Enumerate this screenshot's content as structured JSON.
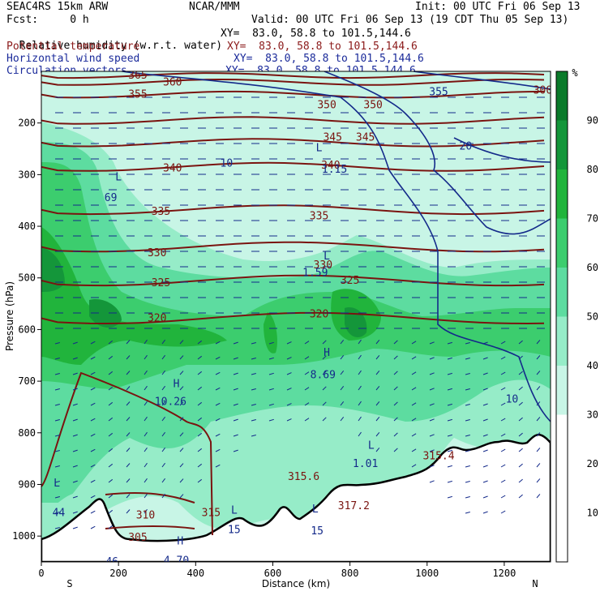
{
  "header": {
    "model": "SEAC4RS 15km ARW",
    "org": "NCAR/MMM",
    "init": "Init: 00 UTC Fri 06 Sep 13",
    "fcst": "Fcst:     0 h",
    "valid": "Valid: 00 UTC Fri 06 Sep 13 (19 CDT Thu 05 Sep 13)",
    "fields": [
      {
        "name": "Relative humidity (w.r.t. water)",
        "xy": "XY=  83.0, 58.8 to 101.5,144.6",
        "color": "#000000"
      },
      {
        "name": "Potential temperature",
        "xy": "XY=  83.0, 58.8 to 101.5,144.6",
        "color": "#8b1a1a"
      },
      {
        "name": "Horizontal wind speed",
        "xy": "XY=  83.0, 58.8 to 101.5,144.6",
        "color": "#1a2a9a"
      },
      {
        "name": "Circulation vectors",
        "xy": "XY=  83.0, 58.8 to 101.5,144.6",
        "color": "#1a2a9a"
      }
    ]
  },
  "chart_data": {
    "type": "heatmap",
    "xlabel": "Distance (km)",
    "ylabel": "Pressure (hPa)",
    "xlim": [
      0,
      1320
    ],
    "ylim": [
      1050,
      100
    ],
    "x_ticks": [
      0,
      200,
      400,
      600,
      800,
      1000,
      1200
    ],
    "y_ticks": [
      200,
      300,
      400,
      500,
      600,
      700,
      800,
      900,
      1000
    ],
    "x_end_labels": {
      "left": "S",
      "right": "N"
    },
    "colorbar": {
      "unit": "%",
      "levels": [
        10,
        20,
        30,
        40,
        50,
        60,
        70,
        80,
        90
      ],
      "colors": [
        "#ffffff",
        "#ffffff",
        "#ffffff",
        "#c8f5e6",
        "#96ecc8",
        "#5ddca0",
        "#3ccd6e",
        "#21b43c",
        "#14963a",
        "#0a7a2a"
      ]
    },
    "theta_contours": [
      {
        "level": 365,
        "p": 108
      },
      {
        "level": 360,
        "p": 121
      },
      {
        "level": 355,
        "p": 145
      },
      {
        "level": 350,
        "p": 195
      },
      {
        "level": 345,
        "p": 238
      },
      {
        "level": 340,
        "p": 285
      },
      {
        "level": 335,
        "p": 368
      },
      {
        "level": 330,
        "p": 440
      },
      {
        "level": 325,
        "p": 505
      },
      {
        "level": 320,
        "p": 578
      }
    ],
    "theta_labels": [
      {
        "text": "365",
        "x": 250,
        "p": 108
      },
      {
        "text": "360",
        "x": 340,
        "p": 121
      },
      {
        "text": "355",
        "x": 250,
        "p": 145
      },
      {
        "text": "350",
        "x": 740,
        "p": 165
      },
      {
        "text": "350",
        "x": 860,
        "p": 165
      },
      {
        "text": "345",
        "x": 755,
        "p": 228
      },
      {
        "text": "345",
        "x": 840,
        "p": 228
      },
      {
        "text": "340",
        "x": 340,
        "p": 288
      },
      {
        "text": "340",
        "x": 750,
        "p": 282
      },
      {
        "text": "335",
        "x": 310,
        "p": 372
      },
      {
        "text": "335",
        "x": 720,
        "p": 380
      },
      {
        "text": "330",
        "x": 300,
        "p": 452
      },
      {
        "text": "330",
        "x": 730,
        "p": 475
      },
      {
        "text": "325",
        "x": 310,
        "p": 510
      },
      {
        "text": "325",
        "x": 800,
        "p": 505
      },
      {
        "text": "320",
        "x": 300,
        "p": 578
      },
      {
        "text": "320",
        "x": 720,
        "p": 570
      },
      {
        "text": "310",
        "x": 270,
        "p": 960
      },
      {
        "text": "315",
        "x": 440,
        "p": 955
      },
      {
        "text": "305",
        "x": 250,
        "p": 1003
      },
      {
        "text": "300",
        "x": 1300,
        "p": 137
      },
      {
        "text": "315.6",
        "x": 680,
        "p": 885
      },
      {
        "text": "317.2",
        "x": 810,
        "p": 942
      },
      {
        "text": "315.4",
        "x": 1030,
        "p": 845
      }
    ],
    "wind_labels": [
      {
        "text": "10",
        "x": 480,
        "p": 278
      },
      {
        "text": "20",
        "x": 1100,
        "p": 245
      },
      {
        "text": "10",
        "x": 1220,
        "p": 735
      },
      {
        "text": "355",
        "x": 1030,
        "p": 140
      },
      {
        "text": "L",
        "x": 200,
        "p": 305
      },
      {
        "text": "69",
        "x": 180,
        "p": 345
      },
      {
        "text": "L",
        "x": 720,
        "p": 248
      },
      {
        "text": "1.15",
        "x": 760,
        "p": 290
      },
      {
        "text": "L",
        "x": 740,
        "p": 458
      },
      {
        "text": "1.59",
        "x": 710,
        "p": 490
      },
      {
        "text": "H",
        "x": 740,
        "p": 645
      },
      {
        "text": "8.69",
        "x": 730,
        "p": 688
      },
      {
        "text": "H",
        "x": 350,
        "p": 705
      },
      {
        "text": "10.26",
        "x": 335,
        "p": 740
      },
      {
        "text": "L",
        "x": 855,
        "p": 825
      },
      {
        "text": "1.01",
        "x": 840,
        "p": 860
      },
      {
        "text": "L",
        "x": 500,
        "p": 950
      },
      {
        "text": "15",
        "x": 500,
        "p": 988
      },
      {
        "text": "L",
        "x": 710,
        "p": 948
      },
      {
        "text": "15",
        "x": 715,
        "p": 990
      },
      {
        "text": "L",
        "x": 40,
        "p": 898
      },
      {
        "text": "44",
        "x": 45,
        "p": 955
      },
      {
        "text": "H",
        "x": 360,
        "p": 1010
      },
      {
        "text": "4.70",
        "x": 350,
        "p": 1048
      },
      {
        "text": ".46",
        "x": 175,
        "p": 1050
      }
    ],
    "colorbar_labels": [
      "10",
      "20",
      "30",
      "40",
      "50",
      "60",
      "70",
      "80",
      "90"
    ]
  }
}
